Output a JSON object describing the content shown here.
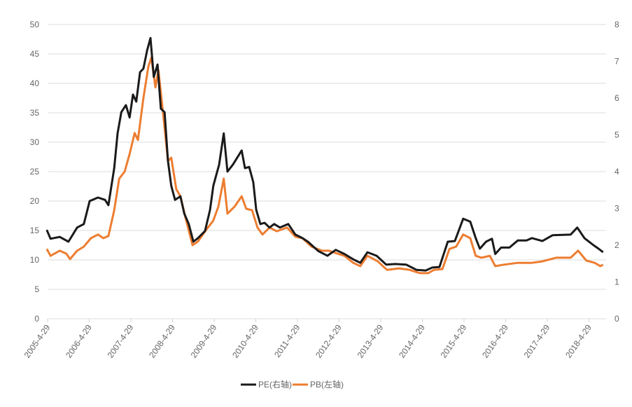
{
  "chart_data": {
    "type": "line",
    "title": "",
    "xlabel": "",
    "ylabel_left": "",
    "ylabel_right": "",
    "x_tick_labels": [
      "2005-4-29",
      "2006-4-29",
      "2007-4-29",
      "2008-4-29",
      "2009-4-29",
      "2010-4-29",
      "2011-4-29",
      "2012-4-29",
      "2013-4-29",
      "2014-4-29",
      "2015-4-29",
      "2016-4-29",
      "2017-4-29",
      "2018-4-29"
    ],
    "y_left": {
      "min": 0,
      "max": 50,
      "ticks": [
        "0",
        "5",
        "10",
        "15",
        "20",
        "25",
        "30",
        "35",
        "40",
        "45",
        "50"
      ]
    },
    "y_right": {
      "min": 0,
      "max": 8,
      "ticks": [
        "0",
        "1",
        "2",
        "3",
        "4",
        "5",
        "6",
        "7",
        "8"
      ]
    },
    "grid": "horizontal",
    "legend_position": "bottom",
    "x_units": "decimal year",
    "series": [
      {
        "name": "PE(右轴)",
        "color": "#1a1a1a",
        "plotted_on": "left-scale",
        "points": [
          [
            2005.31,
            15.1
          ],
          [
            2005.4,
            13.6
          ],
          [
            2005.62,
            13.9
          ],
          [
            2005.83,
            13.1
          ],
          [
            2006.04,
            15.5
          ],
          [
            2006.2,
            16.1
          ],
          [
            2006.34,
            20.0
          ],
          [
            2006.54,
            20.6
          ],
          [
            2006.71,
            20.2
          ],
          [
            2006.79,
            19.3
          ],
          [
            2006.93,
            25.6
          ],
          [
            2007.01,
            31.5
          ],
          [
            2007.1,
            35.1
          ],
          [
            2007.21,
            36.3
          ],
          [
            2007.3,
            34.2
          ],
          [
            2007.38,
            38.1
          ],
          [
            2007.46,
            36.9
          ],
          [
            2007.55,
            41.9
          ],
          [
            2007.63,
            42.5
          ],
          [
            2007.72,
            45.6
          ],
          [
            2007.8,
            47.7
          ],
          [
            2007.88,
            41.1
          ],
          [
            2007.97,
            43.2
          ],
          [
            2008.05,
            35.7
          ],
          [
            2008.14,
            35.1
          ],
          [
            2008.22,
            26.8
          ],
          [
            2008.3,
            22.6
          ],
          [
            2008.39,
            20.2
          ],
          [
            2008.52,
            20.8
          ],
          [
            2008.61,
            17.9
          ],
          [
            2008.72,
            16.1
          ],
          [
            2008.83,
            13.1
          ],
          [
            2008.94,
            13.7
          ],
          [
            2009.11,
            14.9
          ],
          [
            2009.23,
            18.5
          ],
          [
            2009.31,
            22.6
          ],
          [
            2009.45,
            26.2
          ],
          [
            2009.56,
            31.5
          ],
          [
            2009.65,
            25.0
          ],
          [
            2009.78,
            26.2
          ],
          [
            2009.99,
            28.6
          ],
          [
            2010.07,
            25.6
          ],
          [
            2010.17,
            25.8
          ],
          [
            2010.27,
            23.2
          ],
          [
            2010.34,
            18.5
          ],
          [
            2010.44,
            16.1
          ],
          [
            2010.54,
            16.3
          ],
          [
            2010.66,
            15.5
          ],
          [
            2010.77,
            16.1
          ],
          [
            2010.91,
            15.5
          ],
          [
            2011.11,
            16.1
          ],
          [
            2011.28,
            14.3
          ],
          [
            2011.45,
            13.7
          ],
          [
            2011.58,
            13.1
          ],
          [
            2011.83,
            11.5
          ],
          [
            2012.05,
            10.7
          ],
          [
            2012.25,
            11.7
          ],
          [
            2012.46,
            11.0
          ],
          [
            2012.67,
            10.1
          ],
          [
            2012.84,
            9.5
          ],
          [
            2013.01,
            11.3
          ],
          [
            2013.23,
            10.7
          ],
          [
            2013.46,
            9.2
          ],
          [
            2013.68,
            9.3
          ],
          [
            2013.94,
            9.2
          ],
          [
            2014.19,
            8.3
          ],
          [
            2014.41,
            8.2
          ],
          [
            2014.57,
            8.7
          ],
          [
            2014.74,
            8.8
          ],
          [
            2014.94,
            13.1
          ],
          [
            2015.11,
            13.2
          ],
          [
            2015.31,
            17.0
          ],
          [
            2015.48,
            16.5
          ],
          [
            2015.61,
            13.7
          ],
          [
            2015.71,
            11.9
          ],
          [
            2015.86,
            13.1
          ],
          [
            2016.0,
            13.6
          ],
          [
            2016.08,
            11.0
          ],
          [
            2016.22,
            12.1
          ],
          [
            2016.42,
            12.1
          ],
          [
            2016.62,
            13.3
          ],
          [
            2016.83,
            13.3
          ],
          [
            2016.96,
            13.7
          ],
          [
            2017.21,
            13.2
          ],
          [
            2017.46,
            14.2
          ],
          [
            2017.89,
            14.3
          ],
          [
            2018.05,
            15.5
          ],
          [
            2018.22,
            13.7
          ],
          [
            2018.44,
            12.5
          ],
          [
            2018.56,
            11.9
          ],
          [
            2018.67,
            11.3
          ]
        ]
      },
      {
        "name": "PB(左轴)",
        "color": "#ed7d31",
        "plotted_on": "right-scale",
        "points": [
          [
            2005.31,
            1.9
          ],
          [
            2005.4,
            1.71
          ],
          [
            2005.62,
            1.85
          ],
          [
            2005.78,
            1.77
          ],
          [
            2005.87,
            1.62
          ],
          [
            2006.04,
            1.85
          ],
          [
            2006.2,
            1.96
          ],
          [
            2006.37,
            2.19
          ],
          [
            2006.54,
            2.29
          ],
          [
            2006.67,
            2.19
          ],
          [
            2006.79,
            2.25
          ],
          [
            2006.93,
            2.95
          ],
          [
            2007.05,
            3.81
          ],
          [
            2007.18,
            4.0
          ],
          [
            2007.3,
            4.48
          ],
          [
            2007.42,
            5.05
          ],
          [
            2007.5,
            4.86
          ],
          [
            2007.63,
            6.0
          ],
          [
            2007.75,
            6.86
          ],
          [
            2007.82,
            7.1
          ],
          [
            2007.92,
            6.29
          ],
          [
            2007.99,
            6.76
          ],
          [
            2008.11,
            5.52
          ],
          [
            2008.22,
            4.29
          ],
          [
            2008.3,
            4.38
          ],
          [
            2008.42,
            3.52
          ],
          [
            2008.52,
            3.33
          ],
          [
            2008.64,
            2.76
          ],
          [
            2008.81,
            2.0
          ],
          [
            2008.94,
            2.1
          ],
          [
            2009.14,
            2.42
          ],
          [
            2009.31,
            2.67
          ],
          [
            2009.43,
            3.05
          ],
          [
            2009.56,
            3.81
          ],
          [
            2009.65,
            2.86
          ],
          [
            2009.82,
            3.05
          ],
          [
            2009.99,
            3.33
          ],
          [
            2010.1,
            2.99
          ],
          [
            2010.24,
            2.95
          ],
          [
            2010.37,
            2.48
          ],
          [
            2010.49,
            2.29
          ],
          [
            2010.66,
            2.48
          ],
          [
            2010.83,
            2.38
          ],
          [
            2011.08,
            2.48
          ],
          [
            2011.28,
            2.23
          ],
          [
            2011.45,
            2.19
          ],
          [
            2011.67,
            1.96
          ],
          [
            2011.92,
            1.85
          ],
          [
            2012.09,
            1.85
          ],
          [
            2012.29,
            1.77
          ],
          [
            2012.46,
            1.71
          ],
          [
            2012.67,
            1.52
          ],
          [
            2012.84,
            1.43
          ],
          [
            2013.01,
            1.71
          ],
          [
            2013.26,
            1.56
          ],
          [
            2013.48,
            1.33
          ],
          [
            2013.77,
            1.37
          ],
          [
            2014.02,
            1.33
          ],
          [
            2014.27,
            1.24
          ],
          [
            2014.47,
            1.24
          ],
          [
            2014.61,
            1.33
          ],
          [
            2014.81,
            1.35
          ],
          [
            2014.98,
            1.9
          ],
          [
            2015.14,
            1.96
          ],
          [
            2015.31,
            2.29
          ],
          [
            2015.48,
            2.19
          ],
          [
            2015.61,
            1.71
          ],
          [
            2015.75,
            1.66
          ],
          [
            2015.95,
            1.71
          ],
          [
            2016.08,
            1.43
          ],
          [
            2016.29,
            1.47
          ],
          [
            2016.62,
            1.52
          ],
          [
            2016.96,
            1.52
          ],
          [
            2017.21,
            1.56
          ],
          [
            2017.54,
            1.66
          ],
          [
            2017.89,
            1.66
          ],
          [
            2018.07,
            1.85
          ],
          [
            2018.27,
            1.58
          ],
          [
            2018.47,
            1.52
          ],
          [
            2018.6,
            1.43
          ],
          [
            2018.67,
            1.47
          ]
        ]
      }
    ]
  }
}
